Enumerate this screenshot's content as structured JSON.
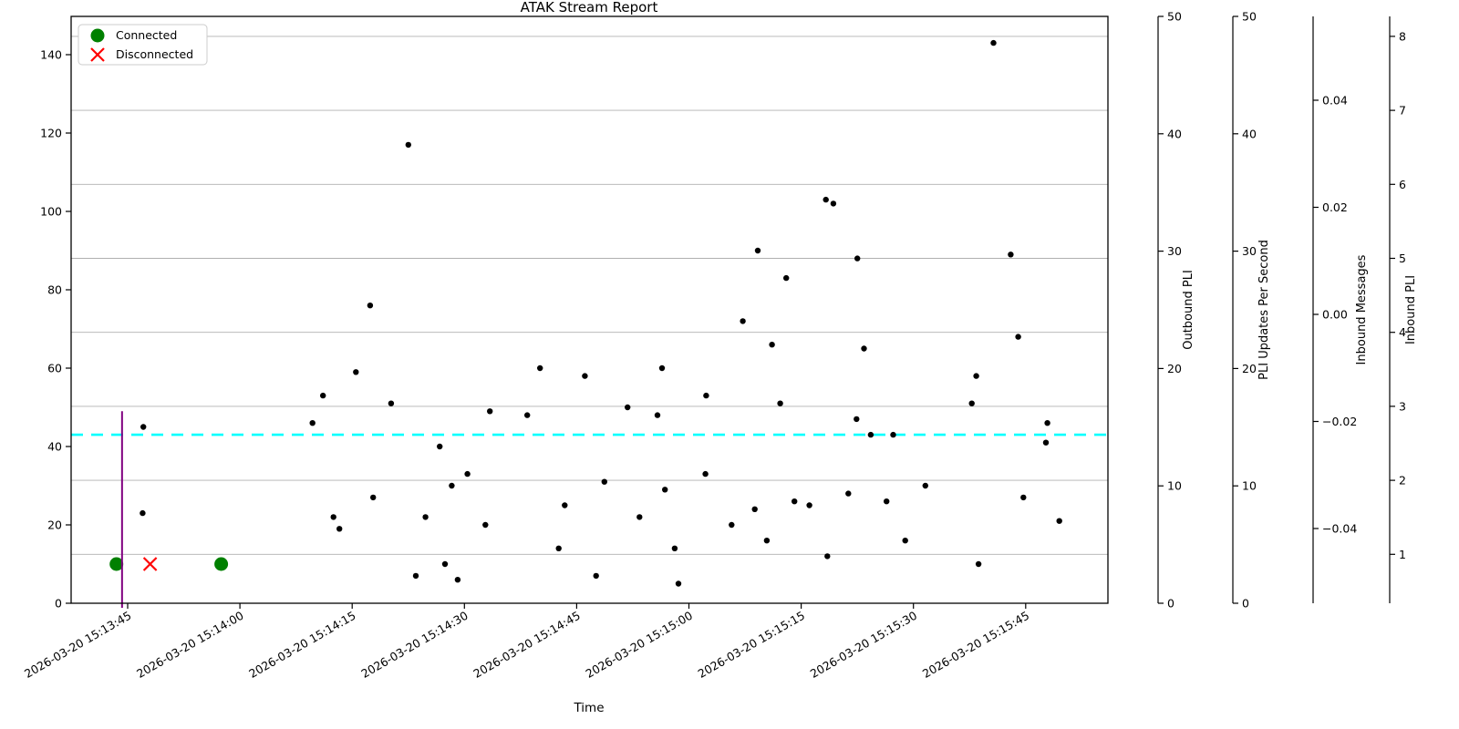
{
  "title": "ATAK Stream Report",
  "chart_data": {
    "type": "scatter",
    "title": "ATAK Stream Report",
    "xlabel": "Time",
    "x_base_label": "2026-03-20 15:13:45",
    "x_tick_labels": [
      "2026-03-20 15:13:45",
      "2026-03-20 15:14:00",
      "2026-03-20 15:14:15",
      "2026-03-20 15:14:30",
      "2026-03-20 15:14:45",
      "2026-03-20 15:15:00",
      "2026-03-20 15:15:15",
      "2026-03-20 15:15:30",
      "2026-03-20 15:15:45"
    ],
    "x_tick_seconds": [
      0,
      15,
      30,
      45,
      60,
      75,
      90,
      105,
      120
    ],
    "x_domain_seconds": [
      -7.5,
      131
    ],
    "left_axis": {
      "ticks": [
        0,
        20,
        40,
        60,
        80,
        100,
        120,
        140
      ],
      "lim": [
        0,
        149.8
      ]
    },
    "scatter_points_t_v": [
      [
        2,
        23
      ],
      [
        2.1,
        45
      ],
      [
        24.7,
        46
      ],
      [
        26.1,
        53
      ],
      [
        27.5,
        22
      ],
      [
        28.3,
        19
      ],
      [
        30.5,
        59
      ],
      [
        32.4,
        76
      ],
      [
        32.8,
        27
      ],
      [
        35.2,
        51
      ],
      [
        37.5,
        117
      ],
      [
        38.5,
        7
      ],
      [
        39.8,
        22
      ],
      [
        41.7,
        40
      ],
      [
        42.4,
        10
      ],
      [
        43.3,
        30
      ],
      [
        44.1,
        6
      ],
      [
        45.4,
        33
      ],
      [
        47.8,
        20
      ],
      [
        48.4,
        49
      ],
      [
        53.4,
        48
      ],
      [
        55.1,
        60
      ],
      [
        57.6,
        14
      ],
      [
        58.4,
        25
      ],
      [
        61.1,
        58
      ],
      [
        62.6,
        7
      ],
      [
        63.7,
        31
      ],
      [
        66.8,
        50
      ],
      [
        68.4,
        22
      ],
      [
        70.8,
        48
      ],
      [
        71.4,
        60
      ],
      [
        71.8,
        29
      ],
      [
        73.1,
        14
      ],
      [
        73.6,
        5
      ],
      [
        77.2,
        33
      ],
      [
        77.3,
        53
      ],
      [
        80.7,
        20
      ],
      [
        82.2,
        72
      ],
      [
        83.8,
        24
      ],
      [
        84.2,
        90
      ],
      [
        85.4,
        16
      ],
      [
        86.1,
        66
      ],
      [
        87.2,
        51
      ],
      [
        88,
        83
      ],
      [
        89.1,
        26
      ],
      [
        91.1,
        25
      ],
      [
        93.3,
        103
      ],
      [
        93.5,
        12
      ],
      [
        94.3,
        102
      ],
      [
        96.3,
        28
      ],
      [
        97.4,
        47
      ],
      [
        97.5,
        88
      ],
      [
        98.4,
        65
      ],
      [
        99.3,
        43
      ],
      [
        101.4,
        26
      ],
      [
        102.3,
        43
      ],
      [
        103.9,
        16
      ],
      [
        106.6,
        30
      ],
      [
        112.8,
        51
      ],
      [
        113.4,
        58
      ],
      [
        113.7,
        10
      ],
      [
        115.7,
        143
      ],
      [
        118,
        89
      ],
      [
        119,
        68
      ],
      [
        119.7,
        27
      ],
      [
        122.7,
        41
      ],
      [
        122.9,
        46
      ],
      [
        124.5,
        21
      ]
    ],
    "scatter_color": "#000000",
    "mean_line": {
      "value": 43,
      "color": "#00FFFF",
      "style": "dashed"
    },
    "event_vline": {
      "t": -0.75,
      "color": "#800080",
      "top_value": 49
    },
    "events": {
      "connected": [
        {
          "t": -1.5,
          "v": 10
        },
        {
          "t": 12.5,
          "v": 10
        }
      ],
      "disconnected": [
        {
          "t": 3,
          "v": 10
        }
      ]
    },
    "legend": [
      {
        "label": "Connected",
        "marker": "circle",
        "color": "#008000"
      },
      {
        "label": "Disconnected",
        "marker": "x",
        "color": "#FF0000"
      }
    ],
    "right_axes": [
      {
        "label": "Outbound PLI",
        "color": "#800080",
        "ticks": [
          "0",
          "10",
          "20",
          "30",
          "40",
          "50"
        ],
        "lim": [
          0,
          50
        ]
      },
      {
        "label": "PLI Updates Per Second",
        "color": "#0000FF",
        "ticks": [
          "0",
          "10",
          "20",
          "30",
          "40",
          "50"
        ],
        "lim": [
          0,
          50
        ]
      },
      {
        "label": "Inbound Messages",
        "color": "#FF0000",
        "tick_color": "#000000",
        "ticks": [
          "0.04",
          "0.02",
          "0.00",
          "−0.02",
          "−0.04"
        ]
      },
      {
        "label": "Inbound PLI",
        "color": "#000000",
        "ticks": [
          "8",
          "7",
          "6",
          "5",
          "4",
          "3",
          "2",
          "1"
        ],
        "grid": true
      }
    ],
    "grid": "horizontal, from Inbound PLI axis (integers 1-8)",
    "legend_position": "upper left"
  }
}
